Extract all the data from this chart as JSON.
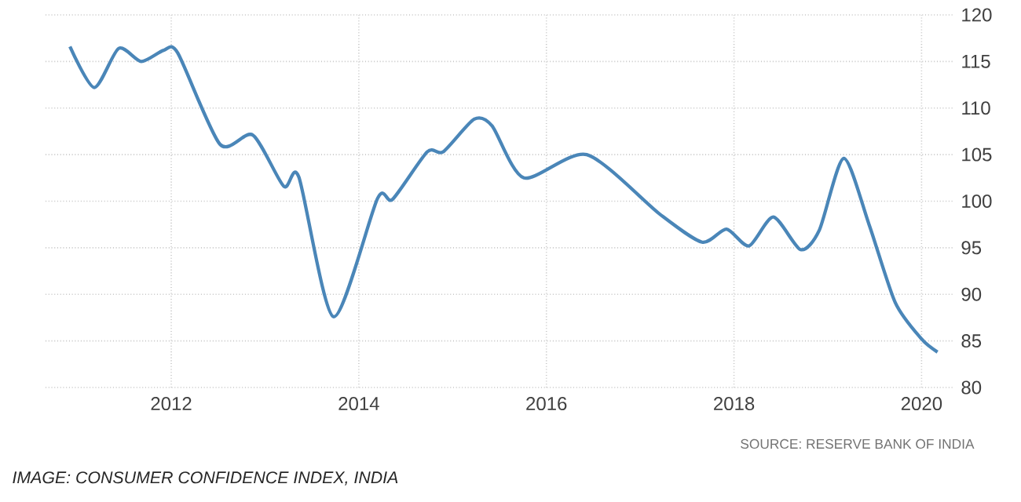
{
  "chart_data": {
    "type": "line",
    "x": [
      2010.92,
      2011.18,
      2011.44,
      2011.68,
      2011.92,
      2012.07,
      2012.52,
      2012.87,
      2013.2,
      2013.36,
      2013.73,
      2014.2,
      2014.36,
      2014.73,
      2014.9,
      2015.23,
      2015.42,
      2015.76,
      2016.43,
      2017.21,
      2017.66,
      2017.92,
      2018.16,
      2018.42,
      2018.71,
      2018.91,
      2019.17,
      2019.44,
      2019.72,
      2020.0,
      2020.17
    ],
    "series": [
      {
        "color": "#4a86b8",
        "values": [
          116.6,
          112.2,
          116.4,
          115.0,
          116.2,
          115.9,
          106.1,
          107.1,
          101.6,
          102.6,
          87.6,
          100.3,
          100.2,
          105.3,
          105.3,
          108.8,
          108.1,
          102.5,
          105.0,
          98.6,
          95.6,
          97.0,
          95.2,
          98.3,
          94.8,
          96.9,
          104.6,
          97.5,
          89.1,
          85.2,
          83.8
        ]
      }
    ],
    "xlim": [
      2010.66,
      2020.34
    ],
    "xticks": [
      2012,
      2014,
      2016,
      2018,
      2020
    ],
    "ylim": [
      80,
      120
    ],
    "yticks": [
      80,
      85,
      90,
      95,
      100,
      105,
      110,
      115,
      120
    ],
    "grid": true,
    "annotations": [
      "SOURCE: RESERVE BANK OF INDIA",
      "IMAGE: CONSUMER CONFIDENCE INDEX, INDIA"
    ]
  }
}
